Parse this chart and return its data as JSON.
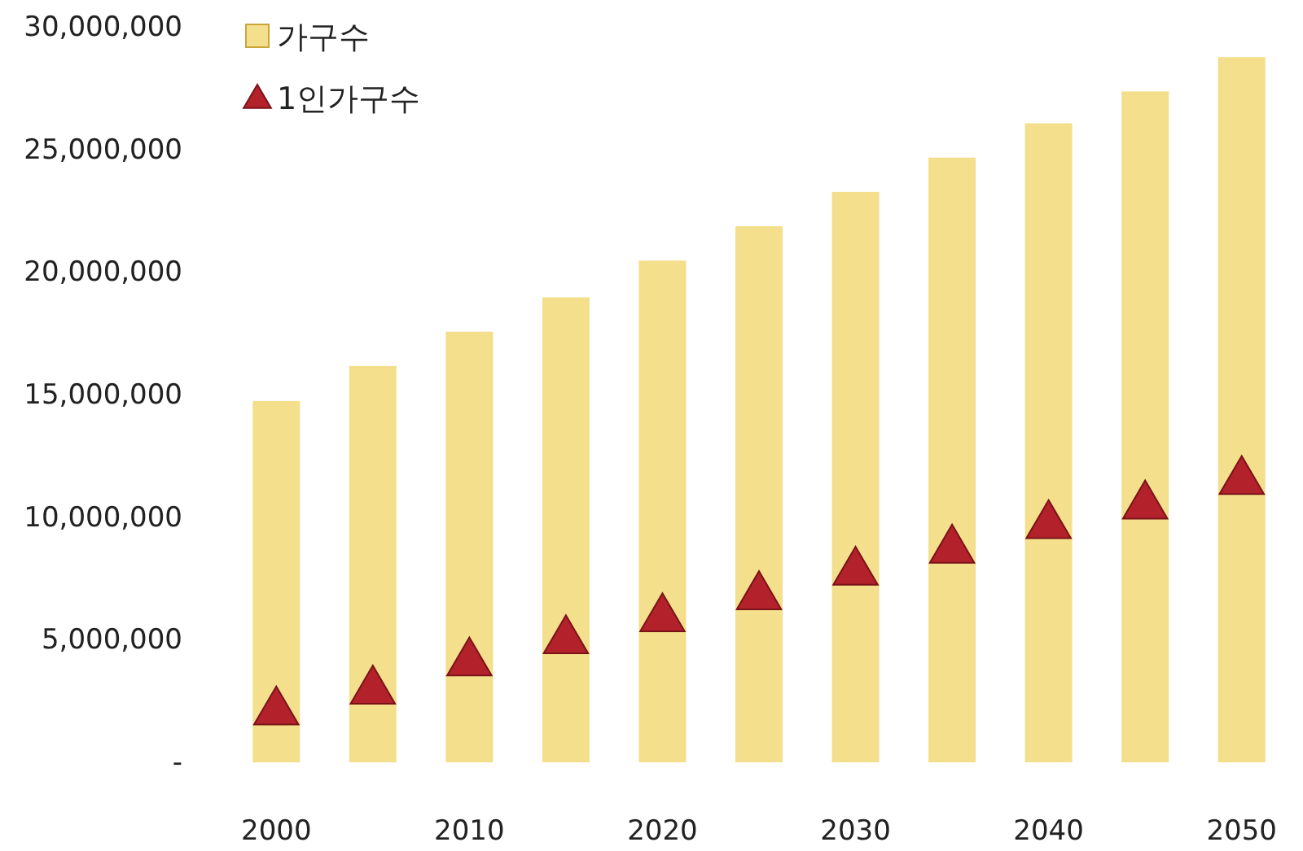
{
  "chart_data": {
    "type": "bar",
    "categories": [
      "2000",
      null,
      "2010",
      null,
      "2020",
      null,
      "2030",
      null,
      "2040",
      null,
      "2050"
    ],
    "series": [
      {
        "name": "가구수",
        "color": "#f3df8c",
        "values": [
          14670000,
          16100000,
          17500000,
          18900000,
          20400000,
          21800000,
          23200000,
          24600000,
          26000000,
          27300000,
          28700000
        ]
      },
      {
        "name": "1인가구수",
        "type": "scatter",
        "marker": "triangle",
        "color": "#b3222b",
        "values": [
          2200000,
          3050000,
          4200000,
          5100000,
          6000000,
          6900000,
          7900000,
          8800000,
          9800000,
          10600000,
          11600000
        ]
      }
    ],
    "ylim": [
      0,
      30000000
    ],
    "yticks": [
      {
        "value": 0,
        "label": "-"
      },
      {
        "value": 5000000,
        "label": "5,000,000"
      },
      {
        "value": 10000000,
        "label": "10,000,000"
      },
      {
        "value": 15000000,
        "label": "15,000,000"
      },
      {
        "value": 20000000,
        "label": "20,000,000"
      },
      {
        "value": 25000000,
        "label": "25,000,000"
      },
      {
        "value": 30000000,
        "label": "30,000,000"
      }
    ],
    "grid": false,
    "legend": "top left"
  }
}
